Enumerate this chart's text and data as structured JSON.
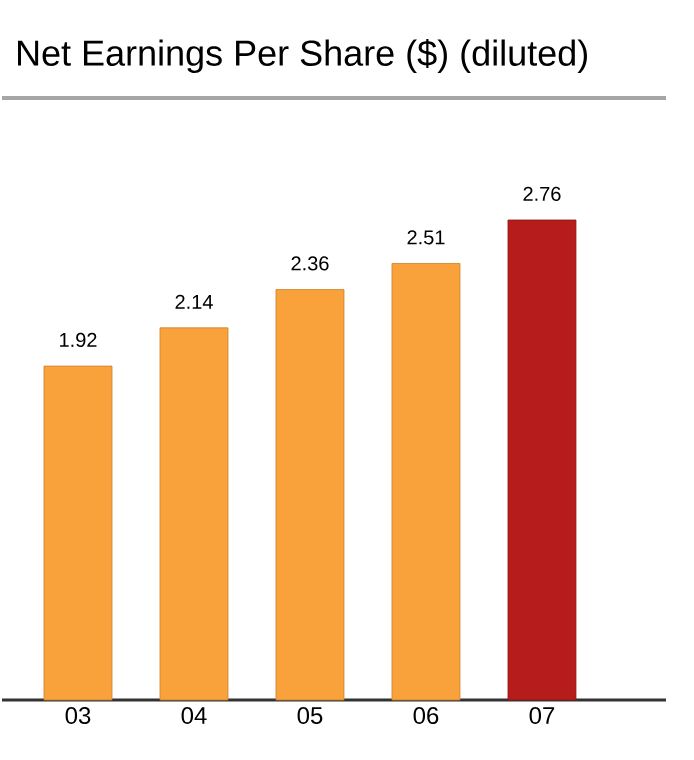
{
  "chart_data": {
    "type": "bar",
    "title": "Net Earnings Per Share ($) (diluted)",
    "categories": [
      "03",
      "04",
      "05",
      "06",
      "07"
    ],
    "values": [
      1.92,
      2.14,
      2.36,
      2.51,
      2.76
    ],
    "colors": [
      "#f9a23b",
      "#f9a23b",
      "#f9a23b",
      "#f9a23b",
      "#b71c1c"
    ],
    "data_labels": true
  }
}
